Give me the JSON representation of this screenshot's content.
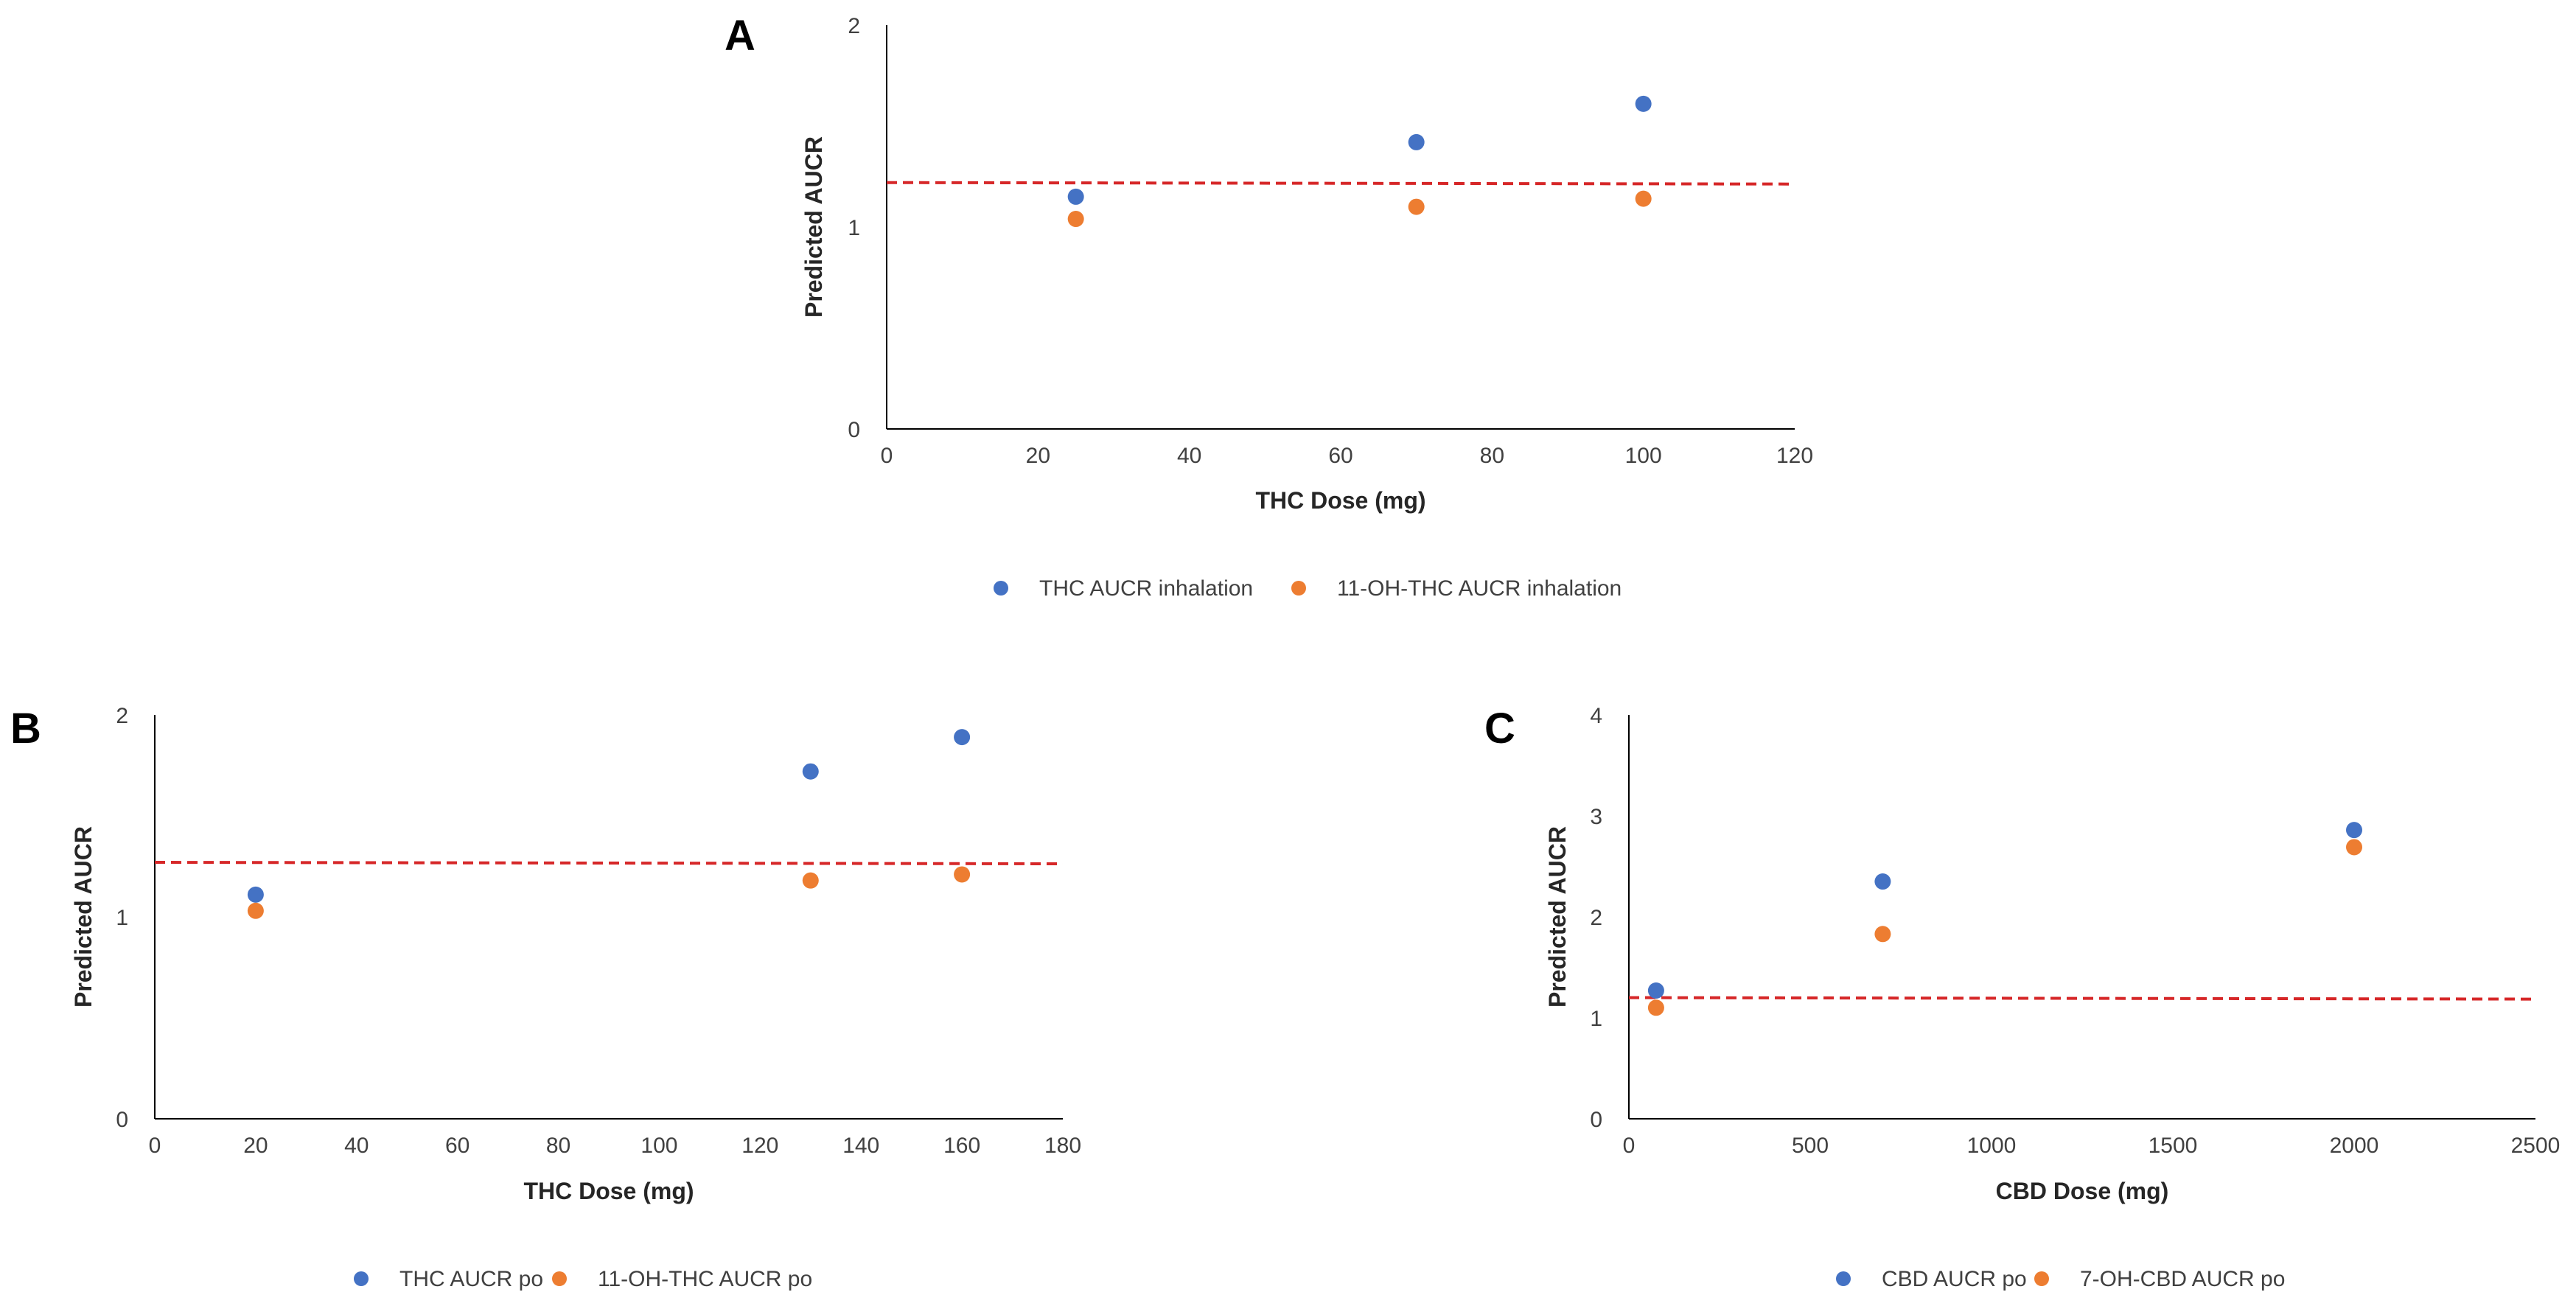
{
  "figure": {
    "panels": [
      "A",
      "B",
      "C"
    ]
  },
  "chart_data": [
    {
      "id": "A",
      "type": "scatter",
      "panel_label": "A",
      "title": "",
      "xlabel": "THC Dose (mg)",
      "ylabel": "Predicted AUCR",
      "xlim": [
        0,
        120
      ],
      "ylim": [
        0,
        2
      ],
      "xticks": [
        0,
        20,
        40,
        60,
        80,
        100,
        120
      ],
      "yticks": [
        0,
        1,
        2
      ],
      "grid": false,
      "legend_position": "bottom",
      "series": [
        {
          "name": "THC AUCR inhalation",
          "color": "#4472C4",
          "x": [
            25,
            70,
            100
          ],
          "y": [
            1.15,
            1.42,
            1.61
          ]
        },
        {
          "name": "11-OH-THC AUCR inhalation",
          "color": "#ED7D31",
          "x": [
            25,
            70,
            100
          ],
          "y": [
            1.04,
            1.1,
            1.14
          ]
        }
      ],
      "reference_line": {
        "y": 1.22,
        "color": "#D62728",
        "style": "dashed"
      }
    },
    {
      "id": "B",
      "type": "scatter",
      "panel_label": "B",
      "title": "",
      "xlabel": "THC Dose (mg)",
      "ylabel": "Predicted AUCR",
      "xlim": [
        0,
        180
      ],
      "ylim": [
        0,
        2
      ],
      "xticks": [
        0,
        20,
        40,
        60,
        80,
        100,
        120,
        140,
        160,
        180
      ],
      "yticks": [
        0,
        1,
        2
      ],
      "grid": false,
      "legend_position": "bottom",
      "series": [
        {
          "name": "THC AUCR po",
          "color": "#4472C4",
          "x": [
            20,
            130,
            160
          ],
          "y": [
            1.11,
            1.72,
            1.89
          ]
        },
        {
          "name": "11-OH-THC AUCR po",
          "color": "#ED7D31",
          "x": [
            20,
            130,
            160
          ],
          "y": [
            1.03,
            1.18,
            1.21
          ]
        }
      ],
      "reference_line": {
        "y": 1.27,
        "color": "#D62728",
        "style": "dashed"
      }
    },
    {
      "id": "C",
      "type": "scatter",
      "panel_label": "C",
      "title": "",
      "xlabel": "CBD Dose (mg)",
      "ylabel": "Predicted AUCR",
      "xlim": [
        0,
        2500
      ],
      "ylim": [
        0,
        4
      ],
      "xticks": [
        0,
        500,
        1000,
        1500,
        2000,
        2500
      ],
      "yticks": [
        0,
        1,
        2,
        3,
        4
      ],
      "grid": false,
      "legend_position": "bottom",
      "series": [
        {
          "name": "CBD AUCR po",
          "color": "#4472C4",
          "x": [
            75,
            700,
            2000
          ],
          "y": [
            1.27,
            2.35,
            2.86
          ]
        },
        {
          "name": "7-OH-CBD AUCR po",
          "color": "#ED7D31",
          "x": [
            75,
            700,
            2000
          ],
          "y": [
            1.1,
            1.83,
            2.69
          ]
        }
      ],
      "reference_line": {
        "y": 1.2,
        "color": "#D62728",
        "style": "dashed"
      }
    }
  ]
}
